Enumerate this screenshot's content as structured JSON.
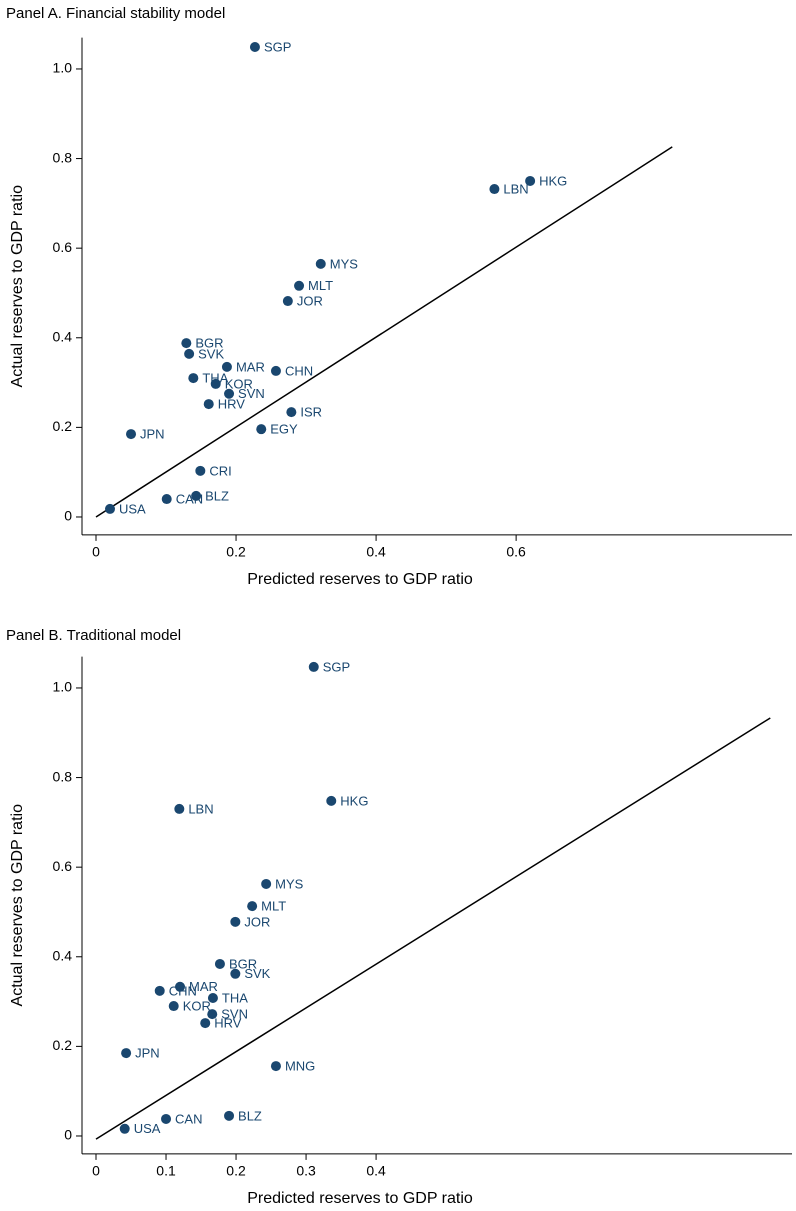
{
  "chart_data": [
    {
      "type": "scatter",
      "title": "Panel A. Financial stability model",
      "x_label": "Predicted reserves to GDP ratio",
      "y_label": "Actual reserves to GDP ratio",
      "color": "#1a476f",
      "x": [
        0.227,
        0.62,
        0.569,
        0.321,
        0.29,
        0.274,
        0.129,
        0.133,
        0.187,
        0.257,
        0.139,
        0.171,
        0.19,
        0.161,
        0.279,
        0.236,
        0.05,
        0.02,
        0.101,
        0.143,
        0.149
      ],
      "y": [
        1.049,
        0.75,
        0.732,
        0.565,
        0.516,
        0.482,
        0.388,
        0.364,
        0.335,
        0.326,
        0.31,
        0.297,
        0.275,
        0.252,
        0.234,
        0.196,
        0.185,
        0.018,
        0.04,
        0.047,
        0.103
      ],
      "labels": [
        "SGP",
        "HKG",
        "LBN",
        "MYS",
        "MLT",
        "JOR",
        "BGR",
        "SVK",
        "MAR",
        "CHN",
        "THA",
        "KOR",
        "SVN",
        "HRV",
        "ISR",
        "EGY",
        "JPN",
        "USA",
        "CAN",
        "BLZ",
        "CRI"
      ],
      "fit_line": {
        "x": [
          0,
          0.823
        ],
        "y": [
          0,
          0.826
        ]
      },
      "xlim": [
        -0.02,
        0.994
      ],
      "ylim": [
        -0.04,
        1.07
      ],
      "xticks": [
        0,
        0.2,
        0.4,
        0.6
      ],
      "yticks": [
        0,
        0.2,
        0.4,
        0.6,
        0.8,
        {
          "value": 1,
          "label": "1.0"
        }
      ]
    },
    {
      "type": "scatter",
      "title": "Panel B. Traditional model",
      "x_label": "Predicted reserves to GDP ratio",
      "y_label": "Actual reserves to GDP ratio",
      "color": "#1a476f",
      "x": [
        0.311,
        0.336,
        0.119,
        0.243,
        0.223,
        0.199,
        0.177,
        0.199,
        0.12,
        0.091,
        0.167,
        0.111,
        0.166,
        0.156,
        0.257,
        0.043,
        0.041,
        0.1,
        0.19
      ],
      "y": [
        1.047,
        0.748,
        0.73,
        0.5625,
        0.513,
        0.478,
        0.384,
        0.362,
        0.333,
        0.324,
        0.308,
        0.29,
        0.272,
        0.252,
        0.156,
        0.185,
        0.016,
        0.038,
        0.045
      ],
      "labels": [
        "SGP",
        "HKG",
        "LBN",
        "MYS",
        "MLT",
        "JOR",
        "BGR",
        "SVK",
        "MAR",
        "CHN",
        "THA",
        "KOR",
        "SVN",
        "HRV",
        "MNG",
        "JPN",
        "USA",
        "CAN",
        "BLZ"
      ],
      "fit_line": {
        "x": [
          0,
          0.963
        ],
        "y": [
          -0.007,
          0.933
        ]
      },
      "xlim": [
        -0.02,
        0.994
      ],
      "ylim": [
        -0.04,
        1.07
      ],
      "xticks": [
        0,
        0.1,
        0.2,
        0.3,
        0.4
      ],
      "yticks": [
        0,
        0.2,
        0.4,
        0.6,
        0.8,
        {
          "value": 1,
          "label": "1.0"
        }
      ]
    }
  ]
}
